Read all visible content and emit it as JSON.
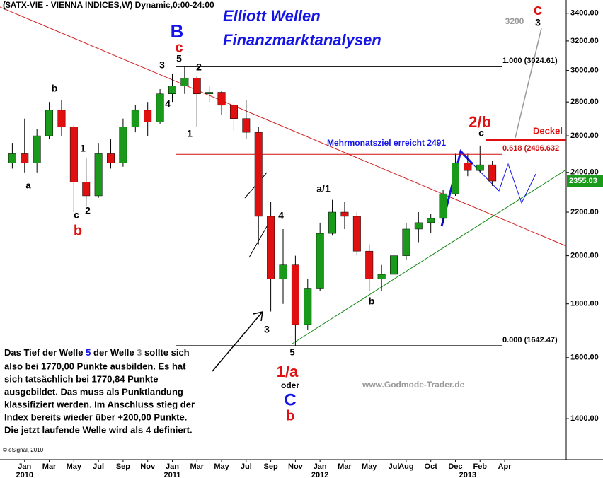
{
  "chart_data": {
    "type": "candlestick",
    "title": "($ATX-VIE - VIENNA INDICES,W) Dynamic,0:00-24:00",
    "heading": [
      "Elliott Wellen",
      "Finanzmarktanalysen"
    ],
    "heading_color": "#1414e6",
    "x": [
      "2009-12",
      "2010-01",
      "2010-02",
      "2010-03",
      "2010-04",
      "2010-05",
      "2010-06",
      "2010-07",
      "2010-08",
      "2010-09",
      "2010-10",
      "2010-11",
      "2010-12",
      "2011-01",
      "2011-02",
      "2011-03",
      "2011-04",
      "2011-05",
      "2011-06",
      "2011-07",
      "2011-08",
      "2011-09",
      "2011-10",
      "2011-11",
      "2011-12",
      "2012-01",
      "2012-02",
      "2012-03",
      "2012-04",
      "2012-05",
      "2012-06",
      "2012-07",
      "2012-08",
      "2012-09",
      "2012-10",
      "2012-11",
      "2012-12",
      "2013-01",
      "2013-02",
      "2013-03"
    ],
    "open": [
      2450,
      2500,
      2450,
      2600,
      2750,
      2650,
      2350,
      2280,
      2500,
      2450,
      2650,
      2750,
      2680,
      2850,
      2900,
      2950,
      2850,
      2860,
      2780,
      2700,
      2620,
      2180,
      1900,
      1960,
      1720,
      1860,
      2100,
      2200,
      2180,
      2020,
      1900,
      1920,
      2000,
      2120,
      2150,
      2170,
      2290,
      2450,
      2410,
      2440
    ],
    "high": [
      2560,
      2700,
      2640,
      2800,
      2810,
      2660,
      2480,
      2560,
      2580,
      2700,
      2780,
      2800,
      2880,
      2980,
      3025,
      2960,
      2900,
      2870,
      2800,
      2810,
      2650,
      2250,
      2120,
      2000,
      1900,
      2150,
      2260,
      2250,
      2200,
      2050,
      1960,
      2030,
      2150,
      2200,
      2190,
      2310,
      2500,
      2500,
      2545,
      2460
    ],
    "low": [
      2420,
      2400,
      2400,
      2580,
      2600,
      2200,
      2230,
      2270,
      2420,
      2430,
      2620,
      2600,
      2670,
      2800,
      2850,
      2650,
      2800,
      2720,
      2630,
      2580,
      2050,
      1770,
      1800,
      1642,
      1700,
      1850,
      2090,
      2120,
      2000,
      1850,
      1850,
      1880,
      1980,
      2060,
      2100,
      2150,
      2280,
      2380,
      2400,
      2330
    ],
    "close": [
      2500,
      2450,
      2600,
      2750,
      2650,
      2350,
      2280,
      2500,
      2450,
      2650,
      2750,
      2680,
      2850,
      2900,
      2950,
      2850,
      2860,
      2780,
      2700,
      2620,
      2180,
      1900,
      1960,
      1720,
      1860,
      2100,
      2200,
      2180,
      2020,
      1900,
      1920,
      2000,
      2120,
      2150,
      2170,
      2290,
      2450,
      2410,
      2440,
      2355
    ],
    "up_color": "#1a9a1a",
    "down_color": "#e01010",
    "xlim": [
      "2009-11",
      "2013-09"
    ],
    "xticks": [
      {
        "value": "2010-01",
        "label": "Jan"
      },
      {
        "value": "2010-03",
        "label": "Mar"
      },
      {
        "value": "2010-05",
        "label": "May"
      },
      {
        "value": "2010-07",
        "label": "Jul"
      },
      {
        "value": "2010-09",
        "label": "Sep"
      },
      {
        "value": "2010-11",
        "label": "Nov"
      },
      {
        "value": "2011-01",
        "label": "Jan"
      },
      {
        "value": "2011-03",
        "label": "Mar"
      },
      {
        "value": "2011-05",
        "label": "May"
      },
      {
        "value": "2011-07",
        "label": "Jul"
      },
      {
        "value": "2011-09",
        "label": "Sep"
      },
      {
        "value": "2011-11",
        "label": "Nov"
      },
      {
        "value": "2012-01",
        "label": "Jan"
      },
      {
        "value": "2012-03",
        "label": "Mar"
      },
      {
        "value": "2012-05",
        "label": "May"
      },
      {
        "value": "2012-07",
        "label": "Jul"
      },
      {
        "value": "2012-08",
        "label": "Aug"
      },
      {
        "value": "2012-10",
        "label": "Oct"
      },
      {
        "value": "2012-12",
        "label": "Dec"
      },
      {
        "value": "2013-02",
        "label": "Feb"
      },
      {
        "value": "2013-04",
        "label": "Apr"
      }
    ],
    "year_ticks": [
      {
        "value": "2010-01",
        "label": "2010"
      },
      {
        "value": "2011-01",
        "label": "2011"
      },
      {
        "value": "2012-01",
        "label": "2012"
      },
      {
        "value": "2013-01",
        "label": "2013"
      }
    ],
    "ylim": [
      1280,
      3500
    ],
    "log_scale": true,
    "yticks": [
      {
        "value": 1400,
        "label": "1400.00"
      },
      {
        "value": 1600,
        "label": "1600.00"
      },
      {
        "value": 1800,
        "label": "1800.00"
      },
      {
        "value": 2000,
        "label": "2000.00"
      },
      {
        "value": 2200,
        "label": "2200.00"
      },
      {
        "value": 2400,
        "label": "2400.00"
      },
      {
        "value": 2600,
        "label": "2600.00"
      },
      {
        "value": 2800,
        "label": "2800.00"
      },
      {
        "value": 3000,
        "label": "3000.00"
      },
      {
        "value": 3200,
        "label": "3200.00"
      },
      {
        "value": 3400,
        "label": "3400.00"
      }
    ],
    "last_price": {
      "value": 2355.03,
      "label": "2355.03"
    },
    "fib_levels": [
      {
        "value": 3024.61,
        "label": "1.000 (3024.61)",
        "color": "#000000"
      },
      {
        "value": 2496.632,
        "label": "0.618 (2496.632",
        "color": "#d01010"
      },
      {
        "value": 1642.47,
        "label": "0.000 (1642.47)",
        "color": "#000000"
      }
    ],
    "annotations": [
      {
        "text": "a",
        "color": "#000000"
      },
      {
        "text": "b",
        "color": "#000000"
      },
      {
        "text": "1",
        "color": "#000000"
      },
      {
        "text": "c",
        "color": "#000000"
      },
      {
        "text": "2",
        "color": "#000000"
      },
      {
        "text": "b",
        "color": "#e01010"
      },
      {
        "text": "3",
        "color": "#000000"
      },
      {
        "text": "4",
        "color": "#000000"
      },
      {
        "text": "5",
        "color": "#000000"
      },
      {
        "text": "c",
        "color": "#e01010"
      },
      {
        "text": "B",
        "color": "#1414e6"
      },
      {
        "text": "2",
        "color": "#000000"
      },
      {
        "text": "1",
        "color": "#000000"
      },
      {
        "text": "4",
        "color": "#000000"
      },
      {
        "text": "3",
        "color": "#000000"
      },
      {
        "text": "5",
        "color": "#000000"
      },
      {
        "text": "1/a",
        "color": "#e01010"
      },
      {
        "text": "oder",
        "color": "#000000"
      },
      {
        "text": "C",
        "color": "#1414e6"
      },
      {
        "text": "b",
        "color": "#e01010"
      },
      {
        "text": "a/1",
        "color": "#000000"
      },
      {
        "text": "b",
        "color": "#000000"
      },
      {
        "text": "2/b",
        "color": "#e01010"
      },
      {
        "text": "c",
        "color": "#000000"
      },
      {
        "text": "c",
        "color": "#e01010"
      },
      {
        "text": "3",
        "color": "#000000"
      },
      {
        "text": "Mehrmonatsziel erreicht 2491",
        "color": "#1414e6"
      },
      {
        "text": "Deckel",
        "color": "#e01010"
      },
      {
        "text": "3200",
        "color": "#999999"
      }
    ],
    "note": {
      "first_line": [
        {
          "text": "Das Tief der Welle",
          "color": "#000000"
        },
        {
          "text": "5",
          "color": "#1414e6"
        },
        {
          "text": "der Welle",
          "color": "#000000"
        },
        {
          "text": "3",
          "color": "#888888"
        },
        {
          "text": "sollte sich",
          "color": "#000000"
        }
      ],
      "lines": [
        "also bei 1770,00 Punkte ausbilden. Es hat",
        "sich tatsächlich bei 1770,84 Punkte",
        "ausgebildet. Das muss als Punktlandung",
        "klassifiziert werden. Im Anschluss stieg der",
        "Index bereits wieder über +200,00 Punkte.",
        "Die jetzt laufende Welle wird als 4 definiert."
      ]
    },
    "watermark": "www.Godmode-Trader.de",
    "copyright": "© eSignal, 2010"
  }
}
